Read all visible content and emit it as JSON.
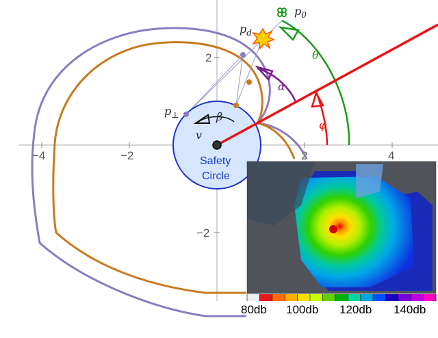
{
  "axes": {
    "x_ticks": [
      "−4",
      "−2",
      "2",
      "4"
    ],
    "y_ticks": [
      "2",
      "−2"
    ]
  },
  "labels": {
    "p0": "p",
    "p0_sub": "0",
    "pd": "p",
    "pd_sub": "d",
    "pperp": "p",
    "pperp_sub": "⊥",
    "beta": "β",
    "v": "v",
    "alpha": "α",
    "theta": "θ",
    "phi": "φ"
  },
  "safety_circle": {
    "line1": "Safety",
    "line2": "Circle"
  },
  "colorbar": {
    "labels": [
      "80db",
      "100db",
      "120db",
      "140db"
    ],
    "colors": [
      "#f0f0f0",
      "#e31a1c",
      "#ff6a00",
      "#ffb000",
      "#ffe000",
      "#c8ff00",
      "#5fd000",
      "#00b000",
      "#00d8a0",
      "#00a8e8",
      "#0050ff",
      "#1a00c0",
      "#7a00e0",
      "#c000e0",
      "#ff00c0"
    ]
  },
  "colors": {
    "purple_curve": "#8c7cbf",
    "orange_curve": "#c97a1e",
    "red_ray": "#ee1111",
    "green_arc": "#1a9a1a",
    "purple_arc": "#7a1a8a",
    "blue_circle": "#2233cc",
    "circle_fill": "#d6e6ff"
  }
}
